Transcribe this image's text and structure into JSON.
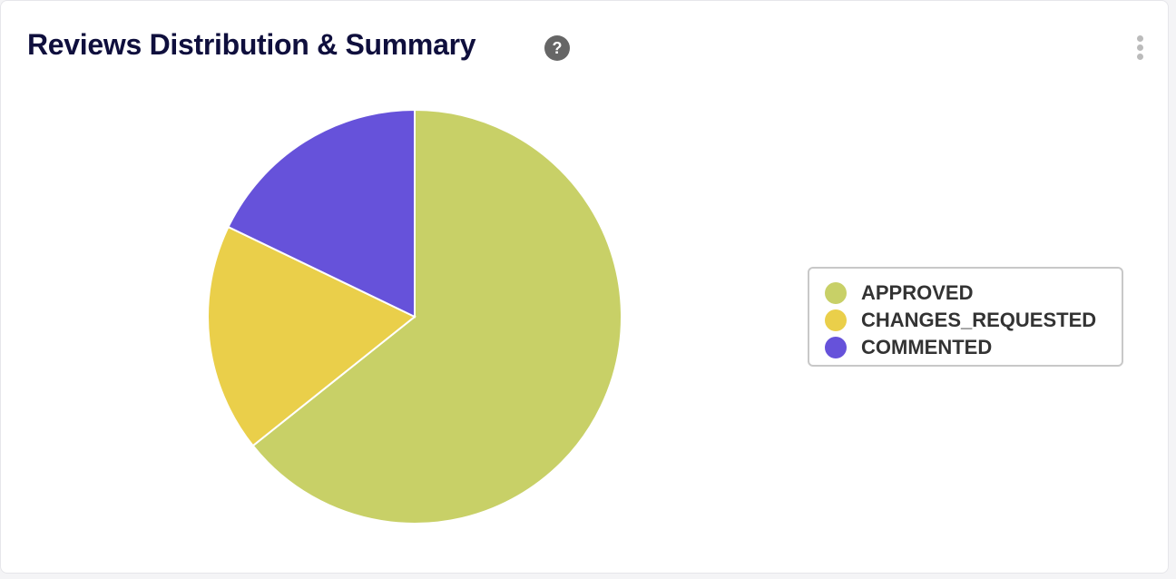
{
  "header": {
    "title": "Reviews Distribution & Summary",
    "help_icon": "question-circle-icon",
    "menu_icon": "kebab-menu-icon"
  },
  "chart_data": {
    "type": "pie",
    "title": "",
    "categories": [
      "APPROVED",
      "CHANGES_REQUESTED",
      "COMMENTED"
    ],
    "values": [
      18,
      5,
      5
    ],
    "colors": [
      "#c8d067",
      "#eacf4a",
      "#6652da"
    ],
    "legend_placement": "right"
  }
}
